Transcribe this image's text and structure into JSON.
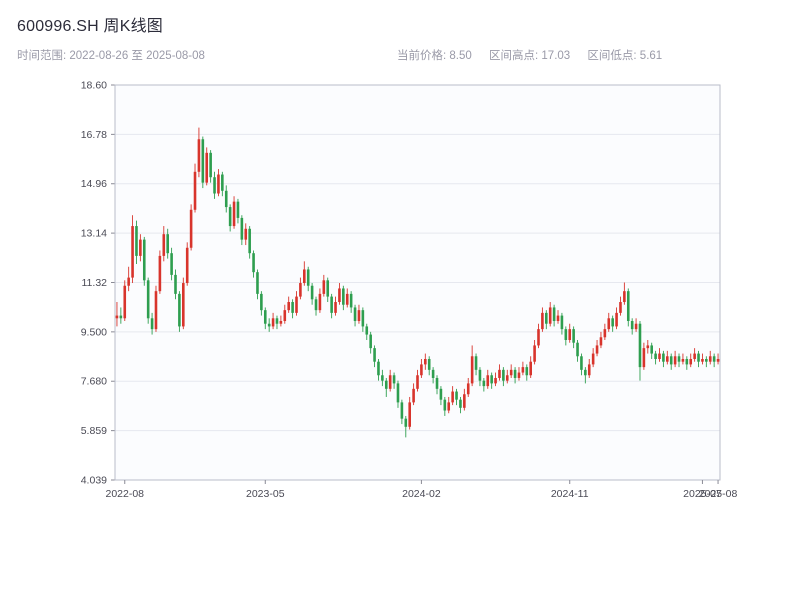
{
  "header": {
    "title": "600996.SH 周K线图",
    "subtitle": "时间范围: 2022-08-26 至 2025-08-08",
    "info": [
      {
        "label": "当前价格:",
        "value": "8.50"
      },
      {
        "label": "区间高点:",
        "value": "17.03"
      },
      {
        "label": "区间低点:",
        "value": "5.61"
      }
    ]
  },
  "chart_data": {
    "type": "candlestick",
    "title": "600996.SH 周K线图",
    "period": "weekly",
    "date_range": {
      "start": "2022-08-26",
      "end": "2025-08-08"
    },
    "current_price": 8.5,
    "range_high": 17.03,
    "range_low": 5.61,
    "ylim": [
      4.039,
      18.6
    ],
    "y_ticks": [
      "18.60",
      "16.78",
      "14.96",
      "13.14",
      "11.32",
      "9.500",
      "7.680",
      "5.859",
      "4.039"
    ],
    "x_ticks": [
      {
        "pos": 2,
        "label": "2022-08"
      },
      {
        "pos": 38,
        "label": "2023-05"
      },
      {
        "pos": 78,
        "label": "2024-02"
      },
      {
        "pos": 116,
        "label": "2024-11"
      },
      {
        "pos": 150,
        "label": "2025-07"
      },
      {
        "pos": 154,
        "label": "2025-08"
      }
    ],
    "up_color": "#d8342c",
    "down_color": "#2e9e4f",
    "grid": true,
    "legend": "none",
    "candles_ohlc": [
      [
        10.0,
        10.6,
        9.7,
        10.1
      ],
      [
        10.1,
        10.4,
        9.8,
        10.0
      ],
      [
        10.0,
        11.4,
        9.9,
        11.2
      ],
      [
        11.2,
        11.9,
        11.0,
        11.5
      ],
      [
        11.5,
        13.8,
        11.3,
        13.4
      ],
      [
        13.4,
        13.6,
        12.0,
        12.3
      ],
      [
        12.3,
        13.1,
        12.1,
        12.9
      ],
      [
        12.9,
        13.0,
        11.2,
        11.4
      ],
      [
        11.4,
        11.5,
        9.8,
        10.0
      ],
      [
        10.0,
        10.2,
        9.4,
        9.6
      ],
      [
        9.6,
        11.2,
        9.5,
        11.0
      ],
      [
        11.0,
        12.5,
        10.9,
        12.3
      ],
      [
        12.3,
        13.4,
        12.1,
        13.1
      ],
      [
        13.1,
        13.3,
        12.2,
        12.4
      ],
      [
        12.4,
        12.6,
        11.4,
        11.6
      ],
      [
        11.6,
        11.8,
        10.7,
        10.9
      ],
      [
        10.9,
        11.0,
        9.5,
        9.7
      ],
      [
        9.7,
        11.5,
        9.6,
        11.3
      ],
      [
        11.3,
        12.8,
        11.2,
        12.6
      ],
      [
        12.6,
        14.2,
        12.5,
        14.0
      ],
      [
        14.0,
        15.7,
        13.9,
        15.4
      ],
      [
        15.4,
        17.03,
        15.2,
        16.6
      ],
      [
        16.6,
        16.7,
        14.8,
        15.0
      ],
      [
        15.0,
        16.3,
        14.9,
        16.1
      ],
      [
        16.1,
        16.2,
        15.0,
        15.2
      ],
      [
        15.2,
        15.4,
        14.4,
        14.6
      ],
      [
        14.6,
        15.5,
        14.5,
        15.3
      ],
      [
        15.3,
        15.4,
        14.5,
        14.7
      ],
      [
        14.7,
        14.9,
        13.9,
        14.1
      ],
      [
        14.1,
        14.2,
        13.2,
        13.4
      ],
      [
        13.4,
        14.5,
        13.3,
        14.3
      ],
      [
        14.3,
        14.4,
        13.5,
        13.7
      ],
      [
        13.7,
        13.8,
        12.7,
        12.9
      ],
      [
        12.9,
        13.5,
        12.7,
        13.3
      ],
      [
        13.3,
        13.4,
        12.2,
        12.4
      ],
      [
        12.4,
        12.5,
        11.5,
        11.7
      ],
      [
        11.7,
        11.8,
        10.7,
        10.9
      ],
      [
        10.9,
        11.0,
        10.1,
        10.3
      ],
      [
        10.3,
        10.4,
        9.6,
        9.8
      ],
      [
        9.8,
        10.0,
        9.5,
        9.7
      ],
      [
        9.7,
        10.2,
        9.6,
        10.0
      ],
      [
        10.0,
        10.1,
        9.6,
        9.8
      ],
      [
        9.8,
        10.1,
        9.7,
        9.9
      ],
      [
        9.9,
        10.5,
        9.8,
        10.3
      ],
      [
        10.3,
        10.8,
        10.2,
        10.6
      ],
      [
        10.6,
        10.7,
        10.0,
        10.2
      ],
      [
        10.2,
        11.0,
        10.1,
        10.8
      ],
      [
        10.8,
        11.5,
        10.7,
        11.3
      ],
      [
        11.3,
        12.1,
        11.2,
        11.8
      ],
      [
        11.8,
        11.9,
        11.0,
        11.2
      ],
      [
        11.2,
        11.3,
        10.5,
        10.7
      ],
      [
        10.7,
        10.8,
        10.1,
        10.3
      ],
      [
        10.3,
        11.1,
        10.2,
        10.9
      ],
      [
        10.9,
        11.6,
        10.8,
        11.4
      ],
      [
        11.4,
        11.5,
        10.6,
        10.8
      ],
      [
        10.8,
        10.9,
        10.0,
        10.2
      ],
      [
        10.2,
        10.8,
        10.1,
        10.6
      ],
      [
        10.6,
        11.3,
        10.5,
        11.1
      ],
      [
        11.1,
        11.2,
        10.3,
        10.5
      ],
      [
        10.5,
        11.1,
        10.4,
        10.9
      ],
      [
        10.9,
        11.0,
        10.2,
        10.4
      ],
      [
        10.4,
        10.5,
        9.7,
        9.9
      ],
      [
        9.9,
        10.5,
        9.8,
        10.3
      ],
      [
        10.3,
        10.4,
        9.5,
        9.7
      ],
      [
        9.7,
        9.8,
        9.2,
        9.4
      ],
      [
        9.4,
        9.5,
        8.7,
        8.9
      ],
      [
        8.9,
        9.0,
        8.2,
        8.4
      ],
      [
        8.4,
        8.5,
        7.7,
        7.9
      ],
      [
        7.9,
        8.1,
        7.5,
        7.7
      ],
      [
        7.7,
        7.8,
        7.1,
        7.4
      ],
      [
        7.4,
        8.1,
        7.3,
        7.9
      ],
      [
        7.9,
        8.0,
        7.4,
        7.6
      ],
      [
        7.6,
        7.7,
        6.7,
        6.9
      ],
      [
        6.9,
        7.0,
        6.1,
        6.3
      ],
      [
        6.3,
        6.4,
        5.61,
        6.0
      ],
      [
        6.0,
        7.1,
        5.9,
        6.9
      ],
      [
        6.9,
        7.6,
        6.8,
        7.4
      ],
      [
        7.4,
        8.1,
        7.3,
        7.9
      ],
      [
        7.9,
        8.5,
        7.8,
        8.3
      ],
      [
        8.3,
        8.7,
        8.1,
        8.5
      ],
      [
        8.5,
        8.6,
        7.9,
        8.1
      ],
      [
        8.1,
        8.2,
        7.6,
        7.8
      ],
      [
        7.8,
        7.9,
        7.2,
        7.4
      ],
      [
        7.4,
        7.5,
        6.8,
        7.0
      ],
      [
        7.0,
        7.1,
        6.4,
        6.6
      ],
      [
        6.6,
        7.1,
        6.5,
        6.9
      ],
      [
        6.9,
        7.5,
        6.8,
        7.3
      ],
      [
        7.3,
        7.4,
        6.8,
        7.0
      ],
      [
        7.0,
        7.1,
        6.5,
        6.7
      ],
      [
        6.7,
        7.4,
        6.6,
        7.2
      ],
      [
        7.2,
        7.8,
        7.1,
        7.6
      ],
      [
        7.6,
        9.0,
        7.5,
        8.6
      ],
      [
        8.6,
        8.7,
        7.9,
        8.1
      ],
      [
        8.1,
        8.2,
        7.5,
        7.7
      ],
      [
        7.7,
        7.8,
        7.3,
        7.5
      ],
      [
        7.5,
        8.1,
        7.4,
        7.9
      ],
      [
        7.9,
        8.0,
        7.4,
        7.6
      ],
      [
        7.6,
        8.0,
        7.5,
        7.8
      ],
      [
        7.8,
        8.3,
        7.7,
        8.1
      ],
      [
        8.1,
        8.2,
        7.5,
        7.7
      ],
      [
        7.7,
        8.1,
        7.6,
        7.9
      ],
      [
        7.9,
        8.3,
        7.8,
        8.1
      ],
      [
        8.1,
        8.2,
        7.6,
        7.8
      ],
      [
        7.8,
        8.2,
        7.7,
        8.0
      ],
      [
        8.0,
        8.4,
        7.9,
        8.2
      ],
      [
        8.2,
        8.3,
        7.7,
        7.9
      ],
      [
        7.9,
        8.6,
        7.8,
        8.4
      ],
      [
        8.4,
        9.2,
        8.3,
        9.0
      ],
      [
        9.0,
        9.8,
        8.9,
        9.6
      ],
      [
        9.6,
        10.4,
        9.5,
        10.2
      ],
      [
        10.2,
        10.3,
        9.6,
        9.8
      ],
      [
        9.8,
        10.6,
        9.7,
        10.4
      ],
      [
        10.4,
        10.5,
        9.7,
        9.9
      ],
      [
        9.9,
        10.3,
        9.8,
        10.1
      ],
      [
        10.1,
        10.2,
        9.4,
        9.6
      ],
      [
        9.6,
        9.7,
        9.0,
        9.2
      ],
      [
        9.2,
        9.8,
        9.1,
        9.6
      ],
      [
        9.6,
        9.7,
        8.9,
        9.1
      ],
      [
        9.1,
        9.2,
        8.4,
        8.6
      ],
      [
        8.6,
        8.7,
        7.9,
        8.1
      ],
      [
        8.1,
        8.2,
        7.6,
        7.9
      ],
      [
        7.9,
        8.5,
        7.8,
        8.3
      ],
      [
        8.3,
        8.9,
        8.2,
        8.7
      ],
      [
        8.7,
        9.2,
        8.6,
        9.0
      ],
      [
        9.0,
        9.5,
        8.9,
        9.3
      ],
      [
        9.3,
        9.8,
        9.2,
        9.6
      ],
      [
        9.6,
        10.2,
        9.5,
        10.0
      ],
      [
        10.0,
        10.1,
        9.5,
        9.7
      ],
      [
        9.7,
        10.4,
        9.6,
        10.2
      ],
      [
        10.2,
        10.8,
        10.1,
        10.6
      ],
      [
        10.6,
        11.32,
        10.5,
        11.0
      ],
      [
        11.0,
        11.1,
        9.7,
        9.9
      ],
      [
        9.9,
        10.0,
        9.4,
        9.6
      ],
      [
        9.6,
        10.0,
        9.5,
        9.8
      ],
      [
        9.8,
        9.9,
        7.7,
        8.2
      ],
      [
        8.2,
        9.1,
        8.1,
        8.9
      ],
      [
        8.9,
        9.2,
        8.7,
        9.0
      ],
      [
        9.0,
        9.1,
        8.5,
        8.7
      ],
      [
        8.7,
        8.8,
        8.3,
        8.5
      ],
      [
        8.5,
        8.9,
        8.4,
        8.7
      ],
      [
        8.7,
        8.8,
        8.2,
        8.4
      ],
      [
        8.4,
        8.8,
        8.3,
        8.6
      ],
      [
        8.6,
        8.7,
        8.1,
        8.3
      ],
      [
        8.3,
        8.8,
        8.2,
        8.6
      ],
      [
        8.6,
        8.7,
        8.2,
        8.4
      ],
      [
        8.4,
        8.7,
        8.3,
        8.5
      ],
      [
        8.5,
        8.6,
        8.1,
        8.3
      ],
      [
        8.3,
        8.7,
        8.2,
        8.5
      ],
      [
        8.5,
        8.9,
        8.4,
        8.7
      ],
      [
        8.7,
        8.8,
        8.2,
        8.4
      ],
      [
        8.4,
        8.7,
        8.3,
        8.5
      ],
      [
        8.5,
        8.6,
        8.2,
        8.4
      ],
      [
        8.4,
        8.8,
        8.3,
        8.6
      ],
      [
        8.6,
        8.7,
        8.2,
        8.4
      ],
      [
        8.4,
        8.7,
        8.3,
        8.5
      ]
    ]
  }
}
